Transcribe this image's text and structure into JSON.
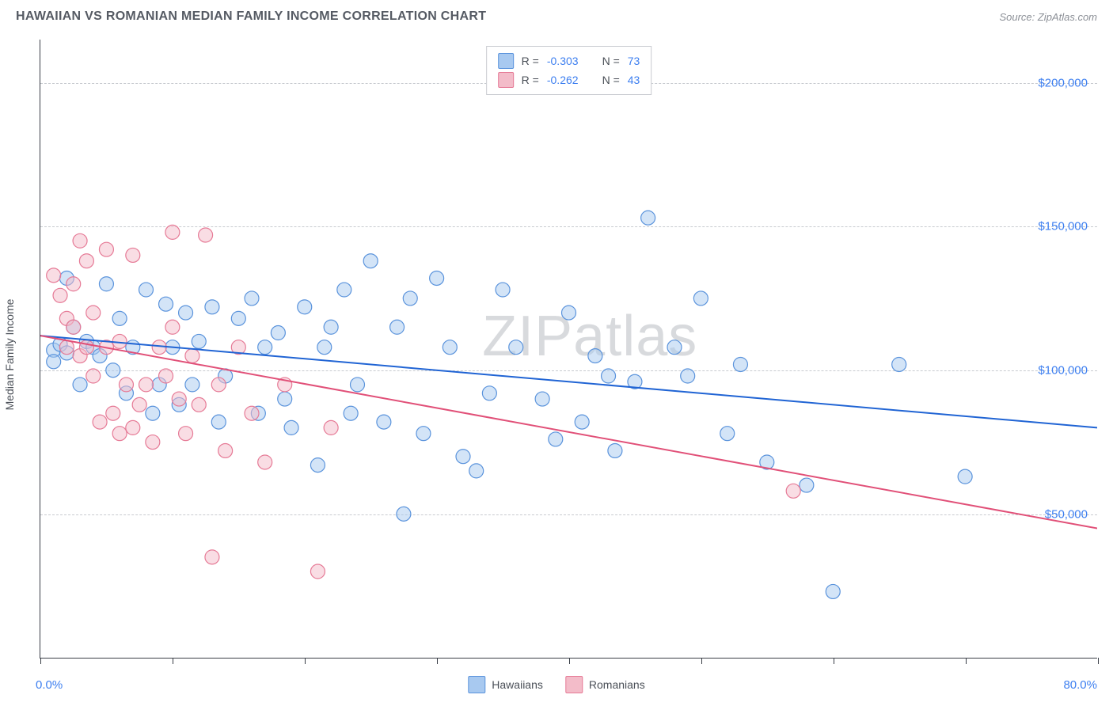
{
  "header": {
    "title": "HAWAIIAN VS ROMANIAN MEDIAN FAMILY INCOME CORRELATION CHART",
    "source": "Source: ZipAtlas.com"
  },
  "watermark": "ZIPatlas",
  "chart": {
    "type": "scatter",
    "background_color": "#ffffff",
    "grid_color": "#c8cbd0",
    "axis_color": "#3a3f47",
    "y_axis_label": "Median Family Income",
    "xlim": [
      0,
      80
    ],
    "ylim": [
      0,
      215000
    ],
    "x_ticks": [
      0,
      10,
      20,
      30,
      40,
      50,
      60,
      70,
      80
    ],
    "x_min_label": "0.0%",
    "x_max_label": "80.0%",
    "y_gridlines": [
      50000,
      100000,
      150000,
      200000
    ],
    "y_tick_labels": [
      "$50,000",
      "$100,000",
      "$150,000",
      "$200,000"
    ],
    "tick_label_color": "#3d7ff0",
    "label_color": "#4a4f57",
    "title_fontsize": 16,
    "label_fontsize": 14,
    "tick_fontsize": 15,
    "marker_radius": 9,
    "marker_opacity": 0.5,
    "line_width": 2,
    "series": [
      {
        "name": "Hawaiians",
        "fill_color": "#a8c9f0",
        "stroke_color": "#5a93dc",
        "line_color": "#2064d4",
        "R": "-0.303",
        "N": "73",
        "trendline": {
          "x1": 0,
          "y1": 112000,
          "x2": 80,
          "y2": 80000
        },
        "points": [
          [
            1,
            107000
          ],
          [
            1,
            103000
          ],
          [
            1.5,
            109000
          ],
          [
            2,
            106000
          ],
          [
            2,
            132000
          ],
          [
            2.5,
            115000
          ],
          [
            3,
            95000
          ],
          [
            3.5,
            110000
          ],
          [
            4,
            108000
          ],
          [
            4.5,
            105000
          ],
          [
            5,
            130000
          ],
          [
            5.5,
            100000
          ],
          [
            6,
            118000
          ],
          [
            6.5,
            92000
          ],
          [
            7,
            108000
          ],
          [
            8,
            128000
          ],
          [
            8.5,
            85000
          ],
          [
            9,
            95000
          ],
          [
            9.5,
            123000
          ],
          [
            10,
            108000
          ],
          [
            10.5,
            88000
          ],
          [
            11,
            120000
          ],
          [
            11.5,
            95000
          ],
          [
            12,
            110000
          ],
          [
            13,
            122000
          ],
          [
            13.5,
            82000
          ],
          [
            14,
            98000
          ],
          [
            15,
            118000
          ],
          [
            16,
            125000
          ],
          [
            16.5,
            85000
          ],
          [
            17,
            108000
          ],
          [
            18,
            113000
          ],
          [
            18.5,
            90000
          ],
          [
            19,
            80000
          ],
          [
            20,
            122000
          ],
          [
            21,
            67000
          ],
          [
            21.5,
            108000
          ],
          [
            22,
            115000
          ],
          [
            23,
            128000
          ],
          [
            23.5,
            85000
          ],
          [
            24,
            95000
          ],
          [
            25,
            138000
          ],
          [
            26,
            82000
          ],
          [
            27,
            115000
          ],
          [
            27.5,
            50000
          ],
          [
            28,
            125000
          ],
          [
            29,
            78000
          ],
          [
            30,
            132000
          ],
          [
            31,
            108000
          ],
          [
            32,
            70000
          ],
          [
            33,
            65000
          ],
          [
            34,
            92000
          ],
          [
            35,
            128000
          ],
          [
            36,
            108000
          ],
          [
            38,
            90000
          ],
          [
            39,
            76000
          ],
          [
            40,
            120000
          ],
          [
            41,
            82000
          ],
          [
            42,
            105000
          ],
          [
            43,
            98000
          ],
          [
            43.5,
            72000
          ],
          [
            45,
            96000
          ],
          [
            46,
            153000
          ],
          [
            48,
            108000
          ],
          [
            49,
            98000
          ],
          [
            50,
            125000
          ],
          [
            52,
            78000
          ],
          [
            53,
            102000
          ],
          [
            55,
            68000
          ],
          [
            58,
            60000
          ],
          [
            60,
            23000
          ],
          [
            65,
            102000
          ],
          [
            70,
            63000
          ]
        ]
      },
      {
        "name": "Romanians",
        "fill_color": "#f3bcc9",
        "stroke_color": "#e67a96",
        "line_color": "#e15078",
        "R": "-0.262",
        "N": "43",
        "trendline": {
          "x1": 0,
          "y1": 112000,
          "x2": 80,
          "y2": 45000
        },
        "points": [
          [
            1,
            133000
          ],
          [
            1.5,
            126000
          ],
          [
            2,
            118000
          ],
          [
            2,
            108000
          ],
          [
            2.5,
            115000
          ],
          [
            2.5,
            130000
          ],
          [
            3,
            105000
          ],
          [
            3,
            145000
          ],
          [
            3.5,
            108000
          ],
          [
            3.5,
            138000
          ],
          [
            4,
            98000
          ],
          [
            4,
            120000
          ],
          [
            4.5,
            82000
          ],
          [
            5,
            108000
          ],
          [
            5,
            142000
          ],
          [
            5.5,
            85000
          ],
          [
            6,
            78000
          ],
          [
            6,
            110000
          ],
          [
            6.5,
            95000
          ],
          [
            7,
            80000
          ],
          [
            7,
            140000
          ],
          [
            7.5,
            88000
          ],
          [
            8,
            95000
          ],
          [
            8.5,
            75000
          ],
          [
            9,
            108000
          ],
          [
            9.5,
            98000
          ],
          [
            10,
            115000
          ],
          [
            10,
            148000
          ],
          [
            10.5,
            90000
          ],
          [
            11,
            78000
          ],
          [
            11.5,
            105000
          ],
          [
            12,
            88000
          ],
          [
            12.5,
            147000
          ],
          [
            13,
            35000
          ],
          [
            13.5,
            95000
          ],
          [
            14,
            72000
          ],
          [
            15,
            108000
          ],
          [
            16,
            85000
          ],
          [
            17,
            68000
          ],
          [
            18.5,
            95000
          ],
          [
            21,
            30000
          ],
          [
            22,
            80000
          ],
          [
            57,
            58000
          ]
        ]
      }
    ],
    "top_legend": [
      {
        "swatch_fill": "#a8c9f0",
        "swatch_stroke": "#5a93dc",
        "R_label": "R =",
        "R_value": "-0.303",
        "N_label": "N =",
        "N_value": "73"
      },
      {
        "swatch_fill": "#f3bcc9",
        "swatch_stroke": "#e67a96",
        "R_label": "R =",
        "R_value": "-0.262",
        "N_label": "N =",
        "N_value": "43"
      }
    ],
    "bottom_legend": [
      {
        "label": "Hawaiians",
        "swatch_fill": "#a8c9f0",
        "swatch_stroke": "#5a93dc"
      },
      {
        "label": "Romanians",
        "swatch_fill": "#f3bcc9",
        "swatch_stroke": "#e67a96"
      }
    ]
  }
}
